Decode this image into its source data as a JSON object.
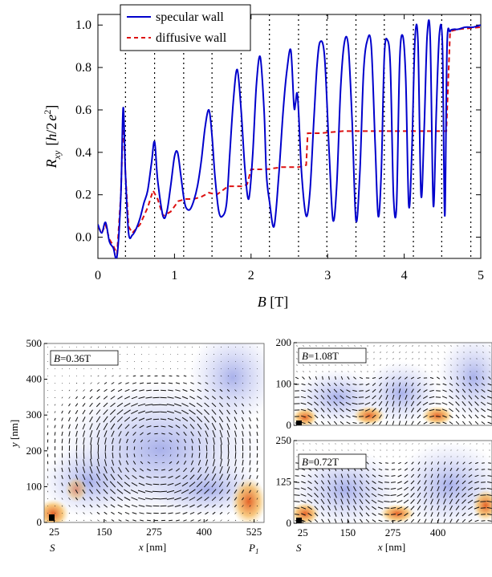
{
  "chart_data": [
    {
      "type": "line",
      "xlabel_var": "B",
      "xlabel_unit": "[T]",
      "ylabel_var": "R",
      "ylabel_sub": "xy",
      "ylabel_unit_open": "[",
      "ylabel_unit_h": "h",
      "ylabel_unit_slash": "/",
      "ylabel_unit_2": "2",
      "ylabel_unit_e": "e",
      "ylabel_unit_exp": "2",
      "ylabel_unit_close": "]",
      "xlim": [
        0,
        5
      ],
      "ylim": [
        -0.1,
        1.05
      ],
      "x_ticks": [
        "0",
        "1",
        "2",
        "3",
        "4",
        "5"
      ],
      "y_ticks": [
        "0.0",
        "0.2",
        "0.4",
        "0.6",
        "0.8",
        "1.0"
      ],
      "legend_position": "top-left",
      "vertical_lines_B": [
        0.36,
        0.74,
        1.12,
        1.49,
        1.87,
        2.24,
        2.62,
        2.99,
        3.37,
        3.74,
        4.12,
        4.49,
        4.87
      ],
      "series": [
        {
          "name": "specular wall",
          "color": "#0000cc",
          "style": "solid",
          "x": [
            0.0,
            0.05,
            0.1,
            0.15,
            0.2,
            0.25,
            0.3,
            0.33,
            0.36,
            0.4,
            0.45,
            0.5,
            0.55,
            0.6,
            0.65,
            0.7,
            0.74,
            0.78,
            0.85,
            0.9,
            0.95,
            1.0,
            1.04,
            1.08,
            1.12,
            1.15,
            1.2,
            1.25,
            1.3,
            1.35,
            1.4,
            1.45,
            1.49,
            1.53,
            1.58,
            1.63,
            1.68,
            1.72,
            1.77,
            1.82,
            1.87,
            1.92,
            1.97,
            2.02,
            2.07,
            2.12,
            2.17,
            2.2,
            2.24,
            2.3,
            2.36,
            2.42,
            2.47,
            2.52,
            2.56,
            2.58,
            2.6,
            2.62,
            2.66,
            2.72,
            2.77,
            2.82,
            2.86,
            2.9,
            2.96,
            3.02,
            3.07,
            3.12,
            3.17,
            3.22,
            3.27,
            3.32,
            3.37,
            3.42,
            3.47,
            3.52,
            3.57,
            3.62,
            3.66,
            3.7,
            3.74,
            3.78,
            3.82,
            3.86,
            3.9,
            3.94,
            3.98,
            4.02,
            4.06,
            4.1,
            4.14,
            4.18,
            4.22,
            4.26,
            4.3,
            4.34,
            4.38,
            4.42,
            4.46,
            4.5,
            4.53,
            4.56,
            4.6,
            4.65,
            4.7,
            4.8,
            4.9,
            5.0
          ],
          "y": [
            0.06,
            0.02,
            0.07,
            -0.02,
            -0.05,
            -0.09,
            0.2,
            0.61,
            0.3,
            0.02,
            0.01,
            0.04,
            0.09,
            0.16,
            0.22,
            0.35,
            0.45,
            0.27,
            0.1,
            0.12,
            0.24,
            0.38,
            0.4,
            0.3,
            0.19,
            0.14,
            0.13,
            0.17,
            0.24,
            0.36,
            0.52,
            0.6,
            0.48,
            0.28,
            0.12,
            0.1,
            0.16,
            0.38,
            0.65,
            0.79,
            0.6,
            0.32,
            0.18,
            0.38,
            0.72,
            0.85,
            0.6,
            0.3,
            0.17,
            0.05,
            0.28,
            0.6,
            0.79,
            0.88,
            0.62,
            0.63,
            0.68,
            0.6,
            0.3,
            0.1,
            0.22,
            0.55,
            0.8,
            0.92,
            0.85,
            0.4,
            0.08,
            0.25,
            0.7,
            0.92,
            0.9,
            0.55,
            0.08,
            0.3,
            0.78,
            0.93,
            0.9,
            0.45,
            0.1,
            0.3,
            0.85,
            0.93,
            0.8,
            0.2,
            0.15,
            0.82,
            0.95,
            0.75,
            0.15,
            0.4,
            0.93,
            0.92,
            0.2,
            0.5,
            0.95,
            0.94,
            0.15,
            0.6,
            0.96,
            0.9,
            0.1,
            0.9,
            0.97,
            0.98,
            0.98,
            0.99,
            0.99,
            1.0
          ]
        },
        {
          "name": "diffusive wall",
          "color": "#dd1111",
          "style": "dashed",
          "x": [
            0.0,
            0.05,
            0.1,
            0.15,
            0.2,
            0.25,
            0.3,
            0.33,
            0.36,
            0.4,
            0.45,
            0.55,
            0.65,
            0.72,
            0.78,
            0.85,
            0.95,
            1.05,
            1.15,
            1.25,
            1.35,
            1.45,
            1.55,
            1.7,
            1.8,
            1.9,
            1.95,
            2.0,
            2.2,
            2.4,
            2.62,
            2.72,
            2.74,
            2.9,
            3.2,
            3.6,
            4.0,
            4.4,
            4.55,
            4.6,
            4.7,
            5.0
          ],
          "y": [
            0.05,
            0.02,
            0.06,
            -0.01,
            -0.04,
            -0.08,
            0.2,
            0.57,
            0.3,
            0.05,
            0.02,
            0.06,
            0.14,
            0.22,
            0.18,
            0.1,
            0.12,
            0.17,
            0.18,
            0.18,
            0.19,
            0.21,
            0.2,
            0.24,
            0.24,
            0.24,
            0.25,
            0.32,
            0.32,
            0.33,
            0.33,
            0.34,
            0.49,
            0.49,
            0.5,
            0.5,
            0.5,
            0.5,
            0.5,
            0.97,
            0.98,
            0.99
          ]
        }
      ]
    },
    {
      "type": "heatmap",
      "label_prefix": "B",
      "label_value": "=0.36T",
      "xlabel_var": "x",
      "xlabel_unit": "[nm]",
      "ylabel_var": "y",
      "ylabel_unit": "[nm]",
      "xlim": [
        0,
        550
      ],
      "ylim": [
        0,
        500
      ],
      "x_ticks": [
        "25",
        "150",
        "275",
        "400",
        "525"
      ],
      "y_ticks": [
        "0",
        "100",
        "200",
        "300",
        "400",
        "500"
      ],
      "source_label": "S",
      "probe_label": "P",
      "probe_sub": "1"
    },
    {
      "type": "heatmap",
      "label_prefix": "B",
      "label_value": "=1.08T",
      "xlim": [
        0,
        550
      ],
      "ylim": [
        0,
        200
      ],
      "y_ticks": [
        "0",
        "100",
        "200"
      ]
    },
    {
      "type": "heatmap",
      "label_prefix": "B",
      "label_value": "=0.72T",
      "xlabel_var": "x",
      "xlabel_unit": "[nm]",
      "xlim": [
        0,
        550
      ],
      "ylim": [
        0,
        250
      ],
      "x_ticks": [
        "25",
        "150",
        "275",
        "400"
      ],
      "y_ticks": [
        "0",
        "125",
        "250"
      ],
      "source_label": "S"
    }
  ]
}
